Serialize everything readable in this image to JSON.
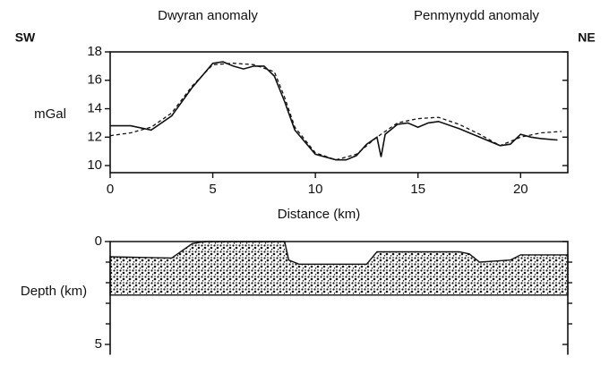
{
  "chart_data": [
    {
      "type": "line",
      "labels": {
        "left": "Dwyran anomaly",
        "right": "Penmynydd anomaly",
        "sw": "SW",
        "ne": "NE"
      },
      "ylabel": "mGal",
      "xlabel": "Distance (km)",
      "xlim": [
        0,
        22.3
      ],
      "xticks": [
        0,
        5,
        10,
        15,
        20
      ],
      "ylim": [
        9.5,
        18
      ],
      "yticks": [
        10,
        12,
        14,
        16,
        18
      ],
      "series": [
        {
          "style": "solid",
          "color": "#111",
          "x": [
            0,
            1,
            2,
            3,
            4,
            5,
            5.5,
            6,
            6.5,
            7,
            7.5,
            8,
            8.5,
            9,
            10,
            11,
            11.5,
            12,
            12.5,
            13,
            13.2,
            13.4,
            14,
            14.5,
            15,
            15.5,
            16,
            17,
            18,
            19,
            19.5,
            20,
            20.5,
            21,
            21.8
          ],
          "values": [
            12.8,
            12.8,
            12.5,
            13.5,
            15.5,
            17.2,
            17.3,
            17.0,
            16.8,
            17.0,
            17.0,
            16.3,
            14.5,
            12.5,
            10.8,
            10.4,
            10.4,
            10.7,
            11.5,
            12.0,
            10.6,
            12.2,
            12.9,
            13.0,
            12.7,
            13.0,
            13.1,
            12.6,
            12.0,
            11.4,
            11.5,
            12.2,
            12.0,
            11.9,
            11.8
          ]
        },
        {
          "style": "dashed",
          "color": "#111",
          "x": [
            0,
            1,
            2,
            3,
            4,
            5,
            6,
            7,
            8,
            8.5,
            9,
            10,
            11,
            12,
            13,
            14,
            15,
            16,
            17,
            18,
            19,
            20,
            21,
            22
          ],
          "values": [
            12.1,
            12.3,
            12.7,
            13.7,
            15.6,
            17.1,
            17.2,
            17.1,
            16.6,
            14.8,
            12.7,
            10.9,
            10.4,
            10.8,
            12.0,
            13.0,
            13.3,
            13.4,
            12.9,
            12.2,
            11.4,
            12.0,
            12.3,
            12.4
          ]
        }
      ]
    },
    {
      "type": "section",
      "ylabel": "Depth (km)",
      "xlim": [
        0,
        22.3
      ],
      "ylim": [
        0,
        5.5
      ],
      "yticks": [
        0,
        5
      ],
      "yminorticks": [
        1,
        2,
        3,
        4
      ],
      "body": {
        "x": [
          0,
          3,
          4,
          4.6,
          5,
          8.5,
          8.7,
          9.2,
          10,
          12.5,
          13,
          17,
          17.5,
          18,
          19.5,
          20,
          22.3
        ],
        "top": [
          0.74,
          0.8,
          0.1,
          0.0,
          0.0,
          0.0,
          0.9,
          1.1,
          1.1,
          1.1,
          0.5,
          0.5,
          0.6,
          1.0,
          0.9,
          0.65,
          0.65
        ],
        "base": 2.6
      }
    }
  ]
}
